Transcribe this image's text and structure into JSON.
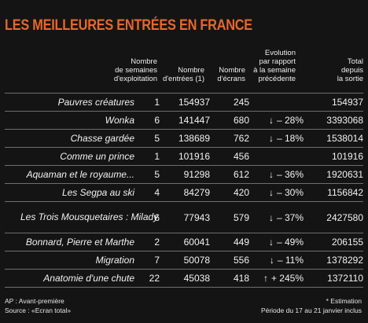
{
  "title": "LES MEILLEURES ENTRÉES EN FRANCE",
  "headers": {
    "weeks": [
      "Nombre",
      "de semaines",
      "d'exploitation"
    ],
    "entries": [
      "Nombre",
      "d'entrées (1)"
    ],
    "screens": [
      "Nombre",
      "d'écrans"
    ],
    "evolution": [
      "Evolution",
      "par rapport",
      "à la semaine",
      "précédente"
    ],
    "total": [
      "Total",
      "depuis",
      "la sortie"
    ]
  },
  "rows": [
    {
      "title": "Pauvres créatures",
      "weeks": "1",
      "entries": "154937",
      "screens": "245",
      "arrow": "",
      "evolution": "",
      "total": "154937"
    },
    {
      "title": "Wonka",
      "weeks": "6",
      "entries": "141447",
      "screens": "680",
      "arrow": "↓",
      "evolution": "– 28%",
      "total": "3393068"
    },
    {
      "title": "Chasse gardée",
      "weeks": "5",
      "entries": "138689",
      "screens": "762",
      "arrow": "↓",
      "evolution": "– 18%",
      "total": "1538014"
    },
    {
      "title": "Comme un prince",
      "weeks": "1",
      "entries": "101916",
      "screens": "456",
      "arrow": "",
      "evolution": "",
      "total": "101916"
    },
    {
      "title": "Aquaman et le royaume...",
      "weeks": "5",
      "entries": "91298",
      "screens": "612",
      "arrow": "↓",
      "evolution": "– 36%",
      "total": "1920631"
    },
    {
      "title": "Les Segpa au ski",
      "weeks": "4",
      "entries": "84279",
      "screens": "420",
      "arrow": "↓",
      "evolution": "– 30%",
      "total": "1156842"
    },
    {
      "title": "Les Trois Mousquetaires : Milady",
      "weeks": "6",
      "entries": "77943",
      "screens": "579",
      "arrow": "↓",
      "evolution": "– 37%",
      "total": "2427580"
    },
    {
      "title": "Bonnard, Pierre et Marthe",
      "weeks": "2",
      "entries": "60041",
      "screens": "449",
      "arrow": "↓",
      "evolution": "– 49%",
      "total": "206155"
    },
    {
      "title": "Migration",
      "weeks": "7",
      "entries": "50078",
      "screens": "556",
      "arrow": "↓",
      "evolution": "– 11%",
      "total": "1378292"
    },
    {
      "title": "Anatomie d'une chute",
      "weeks": "22",
      "entries": "45038",
      "screens": "418",
      "arrow": "↑",
      "evolution": "+ 245%",
      "total": "1372110"
    }
  ],
  "footer": {
    "left": [
      "AP : Avant-première",
      "Source : «Ecran total»"
    ],
    "right": [
      "* Estimation",
      "Période du 17 au 21 janvier inclus"
    ]
  },
  "colors": {
    "title": "#e8672a",
    "background": "#141414",
    "rule": "#6e6e6e"
  },
  "chart_data": {
    "type": "table",
    "title": "LES MEILLEURES ENTRÉES EN FRANCE",
    "columns": [
      "",
      "Nombre de semaines d'exploitation",
      "Nombre d'entrées (1)",
      "Nombre d'écrans",
      "Evolution par rapport à la semaine précédente",
      "Total depuis la sortie"
    ],
    "rows": [
      [
        "Pauvres créatures",
        1,
        154937,
        245,
        null,
        154937
      ],
      [
        "Wonka",
        6,
        141447,
        680,
        -28,
        3393068
      ],
      [
        "Chasse gardée",
        5,
        138689,
        762,
        -18,
        1538014
      ],
      [
        "Comme un prince",
        1,
        101916,
        456,
        null,
        101916
      ],
      [
        "Aquaman et le royaume...",
        5,
        91298,
        612,
        -36,
        1920631
      ],
      [
        "Les Segpa au ski",
        4,
        84279,
        420,
        -30,
        1156842
      ],
      [
        "Les Trois Mousquetaires : Milady",
        6,
        77943,
        579,
        -37,
        2427580
      ],
      [
        "Bonnard, Pierre et Marthe",
        2,
        60041,
        449,
        -49,
        206155
      ],
      [
        "Migration",
        7,
        50078,
        556,
        -11,
        1378292
      ],
      [
        "Anatomie d'une chute",
        22,
        45038,
        418,
        245,
        1372110
      ]
    ]
  }
}
